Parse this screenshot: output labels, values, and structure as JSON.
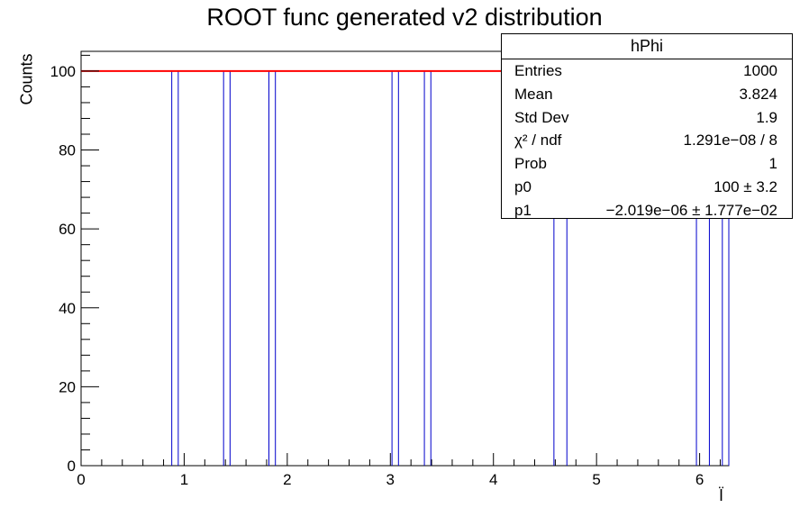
{
  "chart_data": {
    "type": "bar",
    "title": "ROOT func generated v2 distribution",
    "xlabel": "Ï",
    "ylabel": "Counts",
    "xlim": [
      0,
      6.2832
    ],
    "ylim": [
      0,
      105
    ],
    "x_ticks": [
      "0",
      "1",
      "2",
      "3",
      "4",
      "5",
      "6"
    ],
    "y_ticks": [
      "0",
      "20",
      "40",
      "60",
      "80",
      "100"
    ],
    "series": [
      {
        "bins": [
          {
            "low": 0.8796,
            "high": 0.9425,
            "value": 100
          },
          {
            "low": 1.3823,
            "high": 1.4451,
            "value": 100
          },
          {
            "low": 1.8221,
            "high": 1.885,
            "value": 100
          },
          {
            "low": 3.0159,
            "high": 3.0788,
            "value": 100
          },
          {
            "low": 3.3301,
            "high": 3.3929,
            "value": 100
          },
          {
            "low": 4.5867,
            "high": 4.7124,
            "value": 100
          },
          {
            "low": 5.969,
            "high": 6.0947,
            "value": 100
          },
          {
            "low": 6.2204,
            "high": 6.2832,
            "value": 100
          }
        ]
      }
    ],
    "fit_line": {
      "y": 100,
      "color": "#ff0000"
    },
    "bar_color": "#0000cc",
    "stats": {
      "title": "hPhi",
      "rows": [
        {
          "key": "Entries",
          "value": "1000"
        },
        {
          "key": "Mean",
          "value": "3.824"
        },
        {
          "key": "Std Dev",
          "value": "1.9"
        },
        {
          "key": "χ² / ndf",
          "value": "1.291e−08 / 8"
        },
        {
          "key": "Prob",
          "value": "1"
        },
        {
          "key": "p0",
          "value": "100 ± 3.2"
        },
        {
          "key": "p1",
          "value": "−2.019e−06 ± 1.777e−02"
        }
      ]
    }
  }
}
